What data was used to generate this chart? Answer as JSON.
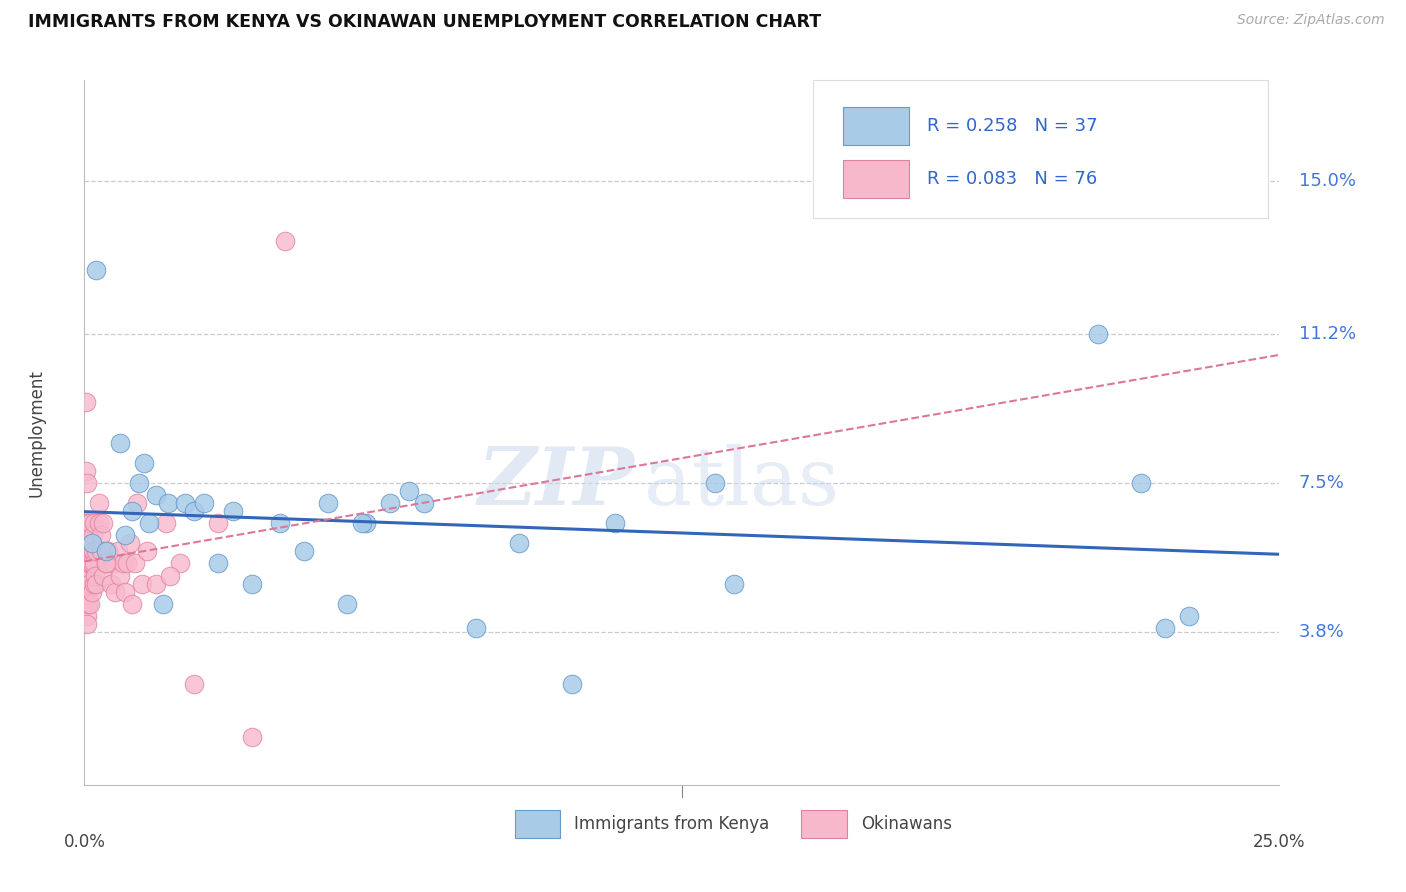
{
  "title": "IMMIGRANTS FROM KENYA VS OKINAWAN UNEMPLOYMENT CORRELATION CHART",
  "source": "Source: ZipAtlas.com",
  "ylabel": "Unemployment",
  "y_ticks": [
    3.8,
    7.5,
    11.2,
    15.0
  ],
  "x_min": 0.0,
  "x_max": 25.0,
  "y_min": 0.0,
  "y_max": 17.5,
  "watermark_zip": "ZIP",
  "watermark_atlas": "atlas",
  "blue_color": "#a8cce8",
  "blue_edge": "#6699cc",
  "pink_color": "#f8b8cc",
  "pink_edge": "#e080a0",
  "blue_line_color": "#3366bb",
  "pink_line_color": "#dd7799",
  "blue_R": 0.258,
  "blue_N": 37,
  "pink_R": 0.083,
  "pink_N": 76,
  "legend_label_blue": "Immigrants from Kenya",
  "legend_label_pink": "Okinawans",
  "blue_x": [
    0.15,
    0.25,
    0.45,
    0.75,
    0.85,
    1.0,
    1.15,
    1.25,
    1.35,
    1.5,
    1.65,
    1.75,
    2.1,
    2.3,
    2.5,
    2.8,
    3.1,
    3.5,
    4.1,
    4.6,
    5.1,
    5.5,
    5.9,
    6.4,
    7.1,
    8.2,
    9.1,
    10.2,
    11.1,
    13.2,
    13.6,
    21.2,
    22.1,
    22.6,
    23.1,
    5.8,
    6.8
  ],
  "blue_y": [
    6.0,
    12.8,
    5.8,
    8.5,
    6.2,
    6.8,
    7.5,
    8.0,
    6.5,
    7.2,
    4.5,
    7.0,
    7.0,
    6.8,
    7.0,
    5.5,
    6.8,
    5.0,
    6.5,
    5.8,
    7.0,
    4.5,
    6.5,
    7.0,
    7.0,
    3.9,
    6.0,
    2.5,
    6.5,
    7.5,
    5.0,
    11.2,
    7.5,
    3.9,
    4.2,
    6.5,
    7.3
  ],
  "pink_x": [
    0.02,
    0.02,
    0.03,
    0.03,
    0.04,
    0.04,
    0.04,
    0.04,
    0.05,
    0.05,
    0.05,
    0.05,
    0.05,
    0.05,
    0.06,
    0.06,
    0.06,
    0.07,
    0.07,
    0.07,
    0.08,
    0.08,
    0.08,
    0.08,
    0.09,
    0.09,
    0.09,
    0.1,
    0.1,
    0.1,
    0.1,
    0.12,
    0.12,
    0.12,
    0.15,
    0.15,
    0.15,
    0.18,
    0.18,
    0.2,
    0.2,
    0.2,
    0.22,
    0.25,
    0.25,
    0.3,
    0.3,
    0.35,
    0.35,
    0.4,
    0.4,
    0.45,
    0.5,
    0.55,
    0.6,
    0.65,
    0.7,
    0.75,
    0.8,
    0.85,
    0.9,
    0.95,
    1.0,
    1.05,
    1.1,
    1.2,
    1.3,
    1.5,
    1.7,
    2.0,
    2.3,
    2.8,
    3.5,
    4.2,
    0.45,
    1.8
  ],
  "pink_y": [
    6.5,
    5.5,
    7.8,
    5.8,
    6.2,
    5.5,
    4.8,
    9.5,
    7.5,
    5.5,
    5.0,
    4.5,
    4.2,
    6.0,
    6.5,
    5.8,
    4.0,
    6.0,
    5.2,
    4.8,
    5.5,
    6.0,
    5.2,
    4.5,
    5.8,
    5.5,
    5.0,
    6.2,
    5.8,
    5.5,
    5.0,
    6.5,
    5.5,
    4.5,
    6.0,
    5.5,
    4.8,
    6.2,
    5.8,
    6.5,
    5.5,
    5.0,
    5.2,
    5.8,
    5.0,
    7.0,
    6.5,
    6.2,
    5.8,
    6.5,
    5.2,
    5.5,
    5.8,
    5.0,
    5.5,
    4.8,
    5.8,
    5.2,
    5.5,
    4.8,
    5.5,
    6.0,
    4.5,
    5.5,
    7.0,
    5.0,
    5.8,
    5.0,
    6.5,
    5.5,
    2.5,
    6.5,
    1.2,
    13.5,
    5.5,
    5.2
  ]
}
